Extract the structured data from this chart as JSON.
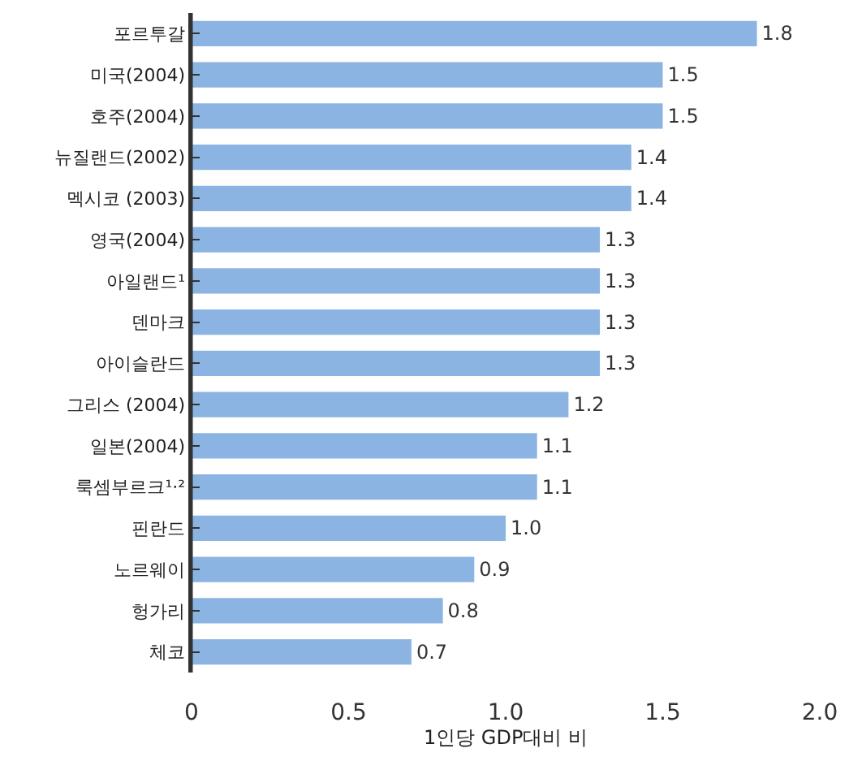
{
  "chart_data": {
    "type": "bar",
    "orientation": "horizontal",
    "xlabel": "1인당 GDP대비 비",
    "categories": [
      "포르투갈",
      "미국(2004)",
      "호주(2004)",
      "뉴질랜드(2002)",
      "멕시코 (2003)",
      "영국(2004)",
      "아일랜드¹",
      "덴마크",
      "아이슬란드",
      "그리스 (2004)",
      "일본(2004)",
      "룩셈부르크¹·²",
      "핀란드",
      "노르웨이",
      "헝가리",
      "체코"
    ],
    "values": [
      1.8,
      1.5,
      1.5,
      1.4,
      1.4,
      1.3,
      1.3,
      1.3,
      1.3,
      1.2,
      1.1,
      1.1,
      1.0,
      0.9,
      0.8,
      0.7
    ],
    "value_labels": [
      "1.8",
      "1.5",
      "1.5",
      "1.4",
      "1.4",
      "1.3",
      "1.3",
      "1.3",
      "1.3",
      "1.2",
      "1.1",
      "1.1",
      "1.0",
      "0.9",
      "0.8",
      "0.7"
    ],
    "color": "#8cb4e2",
    "xlim": [
      0,
      2
    ],
    "xticks": [
      0,
      0.5,
      {
        "value": 1,
        "label": "1.0"
      },
      1.5,
      {
        "value": 2,
        "label": "2.0"
      }
    ],
    "legend": false
  }
}
